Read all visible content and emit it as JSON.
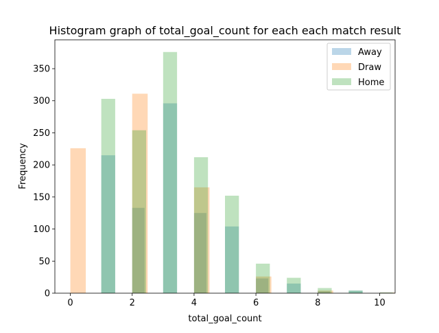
{
  "chart_data": {
    "type": "bar",
    "title": "Histogram graph of total_goal_count for each each match result",
    "xlabel": "total_goal_count",
    "ylabel": "Frequency",
    "xlim": [
      -0.5,
      10.5
    ],
    "ylim": [
      0,
      395
    ],
    "xticks": [
      0,
      2,
      4,
      6,
      8,
      10
    ],
    "yticks": [
      0,
      50,
      100,
      150,
      200,
      250,
      300,
      350
    ],
    "legend_position": "top-right",
    "series": [
      {
        "name": "Away",
        "color": "#1f77b4",
        "opacity": 0.3,
        "bins": [
          {
            "x0": 1.0,
            "x1": 1.45,
            "value": 215
          },
          {
            "x0": 2.0,
            "x1": 2.4,
            "value": 133
          },
          {
            "x0": 3.0,
            "x1": 3.45,
            "value": 296
          },
          {
            "x0": 4.0,
            "x1": 4.4,
            "value": 125
          },
          {
            "x0": 5.0,
            "x1": 5.45,
            "value": 104
          },
          {
            "x0": 6.0,
            "x1": 6.4,
            "value": 23
          },
          {
            "x0": 7.0,
            "x1": 7.45,
            "value": 15
          },
          {
            "x0": 8.0,
            "x1": 8.4,
            "value": 3
          },
          {
            "x0": 9.0,
            "x1": 9.45,
            "value": 4
          },
          {
            "x0": 10.0,
            "x1": 10.4,
            "value": 1
          }
        ]
      },
      {
        "name": "Draw",
        "color": "#ff7f0e",
        "opacity": 0.3,
        "bins": [
          {
            "x0": 0.0,
            "x1": 0.5,
            "value": 226
          },
          {
            "x0": 2.0,
            "x1": 2.5,
            "value": 311
          },
          {
            "x0": 4.0,
            "x1": 4.5,
            "value": 165
          },
          {
            "x0": 6.0,
            "x1": 6.5,
            "value": 26
          },
          {
            "x0": 8.0,
            "x1": 8.5,
            "value": 4
          },
          {
            "x0": 10.0,
            "x1": 10.5,
            "value": 1
          }
        ]
      },
      {
        "name": "Home",
        "color": "#2ca02c",
        "opacity": 0.3,
        "bins": [
          {
            "x0": 1.0,
            "x1": 1.45,
            "value": 303
          },
          {
            "x0": 2.0,
            "x1": 2.45,
            "value": 254
          },
          {
            "x0": 3.0,
            "x1": 3.45,
            "value": 376
          },
          {
            "x0": 4.0,
            "x1": 4.45,
            "value": 212
          },
          {
            "x0": 5.0,
            "x1": 5.45,
            "value": 152
          },
          {
            "x0": 6.0,
            "x1": 6.45,
            "value": 46
          },
          {
            "x0": 7.0,
            "x1": 7.45,
            "value": 24
          },
          {
            "x0": 8.0,
            "x1": 8.45,
            "value": 8
          },
          {
            "x0": 9.0,
            "x1": 9.45,
            "value": 4
          },
          {
            "x0": 10.0,
            "x1": 10.45,
            "value": 1
          }
        ]
      }
    ]
  }
}
